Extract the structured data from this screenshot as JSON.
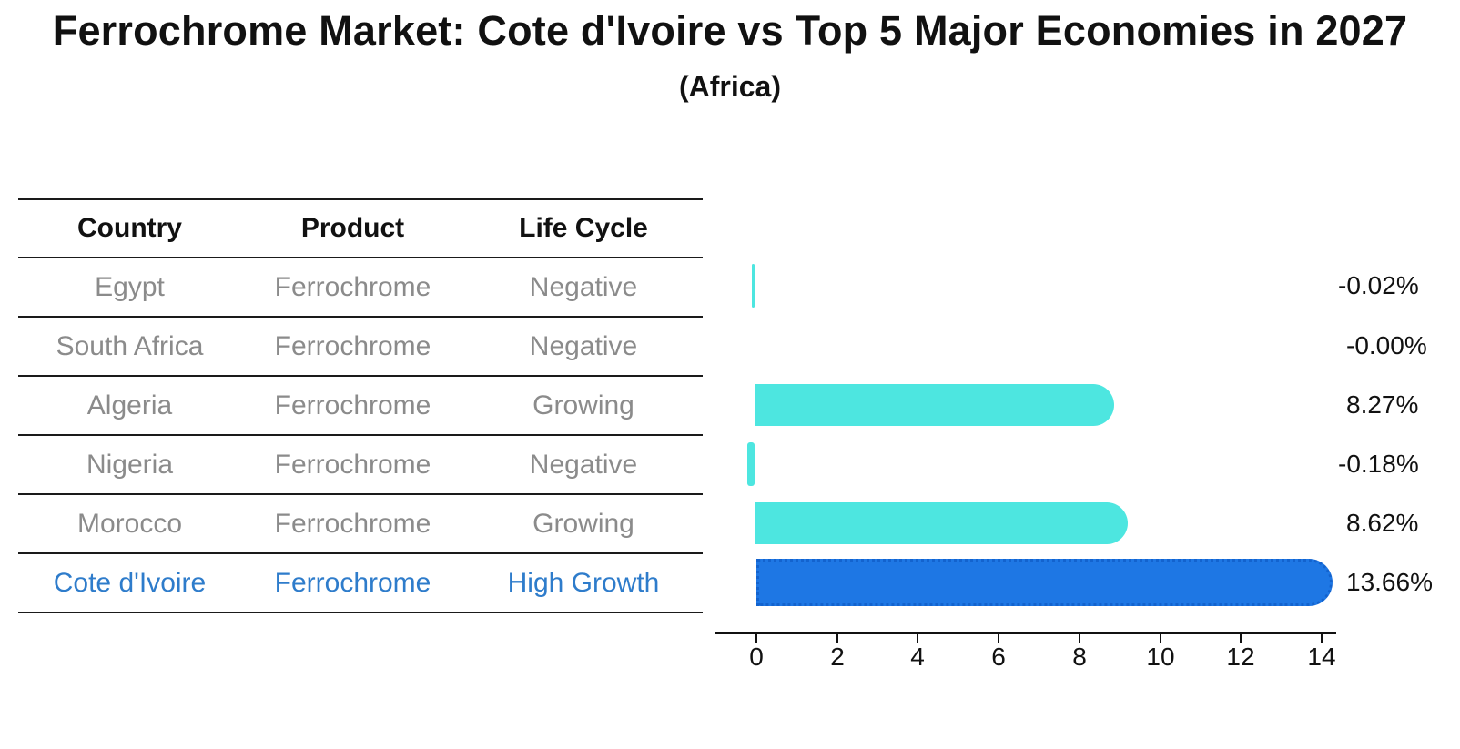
{
  "title": "Ferrochrome Market: Cote d'Ivoire vs Top 5 Major Economies in 2027",
  "subtitle": "(Africa)",
  "table": {
    "headers": [
      "Country",
      "Product",
      "Life Cycle"
    ],
    "rows": [
      {
        "country": "Egypt",
        "product": "Ferrochrome",
        "life_cycle": "Negative",
        "highlight": false
      },
      {
        "country": "South Africa",
        "product": "Ferrochrome",
        "life_cycle": "Negative",
        "highlight": false
      },
      {
        "country": "Algeria",
        "product": "Ferrochrome",
        "life_cycle": "Growing",
        "highlight": false
      },
      {
        "country": "Nigeria",
        "product": "Ferrochrome",
        "life_cycle": "Negative",
        "highlight": false
      },
      {
        "country": "Morocco",
        "product": "Ferrochrome",
        "life_cycle": "Growing",
        "highlight": false
      },
      {
        "country": "Cote d'Ivoire",
        "product": "Ferrochrome",
        "life_cycle": "High Growth",
        "highlight": true
      }
    ]
  },
  "chart_data": {
    "type": "bar",
    "orientation": "horizontal",
    "title": "Ferrochrome Market: Cote d'Ivoire vs Top 5 Major Economies in 2027 (Africa)",
    "categories": [
      "Egypt",
      "South Africa",
      "Algeria",
      "Nigeria",
      "Morocco",
      "Cote d'Ivoire"
    ],
    "values": [
      -0.02,
      -0.0,
      8.27,
      -0.18,
      8.62,
      13.66
    ],
    "value_labels": [
      "-0.02%",
      "-0.00%",
      "8.27%",
      "-0.18%",
      "8.62%",
      "13.66%"
    ],
    "xlabel": "",
    "ylabel": "",
    "xticks": [
      0,
      2,
      4,
      6,
      8,
      10,
      12,
      14
    ],
    "xlim": [
      -0.6,
      14.6
    ],
    "grid": false,
    "legend": "none",
    "bar_color": "#4DE6E0",
    "highlight_index": 5,
    "highlight_color": "#1E77E4",
    "highlight_border_color": "#1363CE"
  },
  "colors": {
    "title_text": "#111111",
    "table_header_text": "#111111",
    "table_body_text": "#8B8B8B",
    "highlight_row_text": "#2E7CCB",
    "table_line": "#1A1A1A",
    "axis": "#111111",
    "value_label_text": "#111111"
  }
}
